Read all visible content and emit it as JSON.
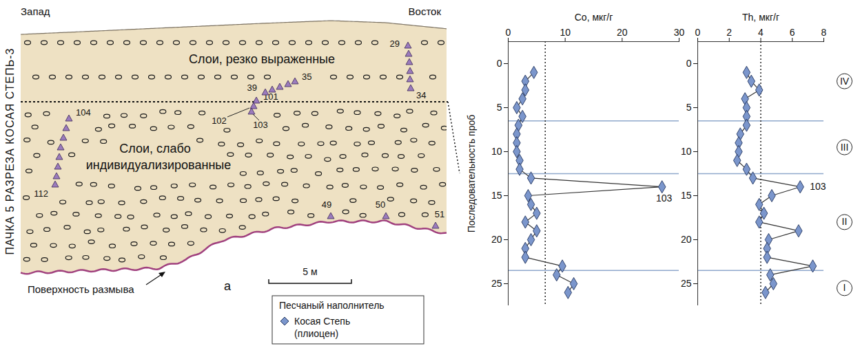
{
  "diagram": {
    "west": "Запад",
    "east": "Восток",
    "unit_title": "ПАЧКА 5 РАЗРЕЗА КОСАЯ СТЕПЬ-3",
    "upper_layers": "Слои, резко выраженные",
    "lower_layers": "Слои, слабо индивидуализированные",
    "erosion_surface": "Поверхность размыва",
    "panel_letter": "а",
    "scale_bar": "5 м",
    "sample_labels": [
      "29",
      "34",
      "35",
      "39",
      "101",
      "102",
      "103",
      "104",
      "112",
      "49",
      "50",
      "51"
    ]
  },
  "chart_data": [
    {
      "type": "line",
      "x_label": "Co, мкг/г",
      "y_label": "Последовательность проб",
      "xlim": [
        0,
        30
      ],
      "xticks": [
        0,
        10,
        20,
        30
      ],
      "ylim": [
        -2.5,
        27.5
      ],
      "yticks": [
        0,
        5,
        10,
        15,
        20,
        25
      ],
      "y": [
        1,
        2,
        3,
        4,
        5,
        6,
        7,
        8,
        9,
        10,
        11,
        12,
        13,
        14,
        15,
        16,
        17,
        18,
        19,
        20,
        21,
        22,
        23,
        24,
        25,
        26
      ],
      "series": [
        {
          "name": "Косая Степь (плиоцен)",
          "color": "#7b96cc",
          "marker": "diamond",
          "values": [
            4.5,
            3,
            3,
            2.5,
            1.5,
            2.5,
            1.8,
            1.5,
            1.5,
            1.5,
            2,
            2,
            4,
            27,
            3.5,
            4,
            5,
            3,
            5,
            4,
            3,
            3,
            9.5,
            8.5,
            11.5,
            10.5
          ]
        }
      ],
      "reference_x": 6.5,
      "zone_boundaries": [
        6.5,
        12.5,
        23.5
      ],
      "annotations": [
        {
          "text": "103",
          "x": 27,
          "y": 14
        }
      ],
      "legend": "bottom",
      "legend_title": "Песчаный наполнитель"
    },
    {
      "type": "line",
      "x_label": "Th, мкг/г",
      "y_label": null,
      "xlim": [
        0,
        8
      ],
      "xticks": [
        0,
        2,
        4,
        6,
        8
      ],
      "ylim": [
        -2.5,
        27.5
      ],
      "yticks": [
        0,
        5,
        10,
        15,
        20,
        25
      ],
      "y": [
        1,
        2,
        3,
        4,
        5,
        6,
        7,
        8,
        9,
        10,
        11,
        12,
        13,
        14,
        15,
        16,
        17,
        18,
        19,
        20,
        21,
        22,
        23,
        24,
        25,
        26
      ],
      "series": [
        {
          "name": "Косая Степь (плиоцен)",
          "color": "#7b96cc",
          "marker": "diamond",
          "values": [
            3.1,
            3.4,
            3.9,
            3.0,
            3.1,
            3.1,
            3.1,
            2.7,
            2.6,
            2.6,
            2.5,
            3.1,
            3.5,
            6.5,
            4.7,
            3.9,
            4.2,
            3.9,
            6.4,
            4.5,
            4.4,
            4.4,
            7.3,
            4.6,
            4.8,
            4.3
          ]
        }
      ],
      "reference_x": 4,
      "zone_boundaries": [
        6.5,
        12.5,
        23.5
      ],
      "zone_labels": [
        "IV",
        "III",
        "II",
        "I"
      ],
      "annotations": [
        {
          "text": "103",
          "x": 6.5,
          "y": 14
        }
      ]
    }
  ]
}
